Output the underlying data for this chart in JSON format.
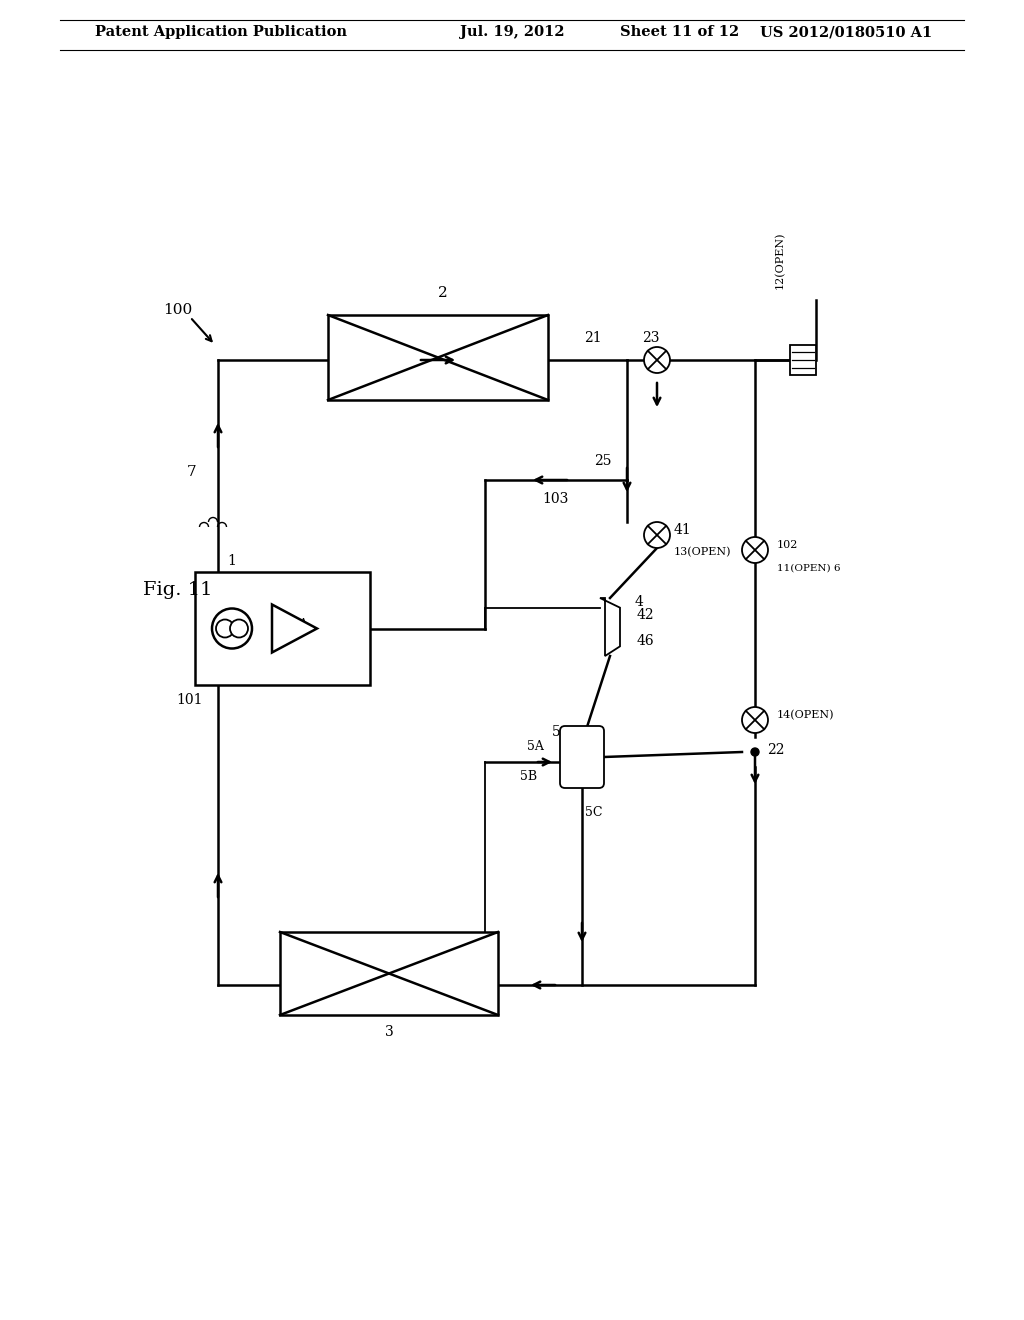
{
  "bg_color": "#ffffff",
  "header_text": "Patent Application Publication",
  "header_date": "Jul. 19, 2012",
  "header_sheet": "Sheet 11 of 12",
  "header_patent": "US 2012/0180510 A1",
  "fig_label": "Fig. 11",
  "system_label": "100"
}
